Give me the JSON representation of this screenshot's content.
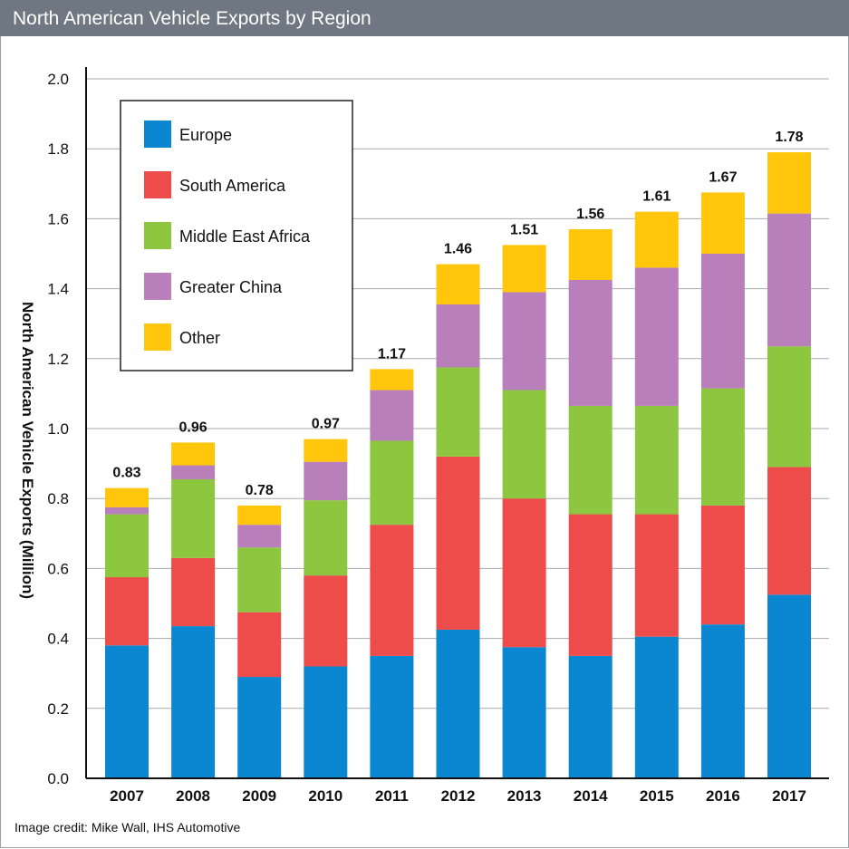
{
  "header": {
    "title": "North American Vehicle Exports by Region"
  },
  "footer": {
    "credit": "Image credit: Mike Wall, IHS Automotive"
  },
  "colors": {
    "Europe": "#0a87d0",
    "South America": "#ee4b4b",
    "Middle East Africa": "#8dc63f",
    "Greater China": "#b97fba",
    "Other": "#ffc60b",
    "grid": "#a7a9ac",
    "title_bar": "#6e7782"
  },
  "chart_data": {
    "type": "bar",
    "stacked": true,
    "title": "North American Vehicle Exports by Region",
    "xlabel": "",
    "ylabel": "North American Vehicle Exports (Million)",
    "ylim": [
      0,
      2.0
    ],
    "yticks": [
      "0.0",
      "0.2",
      "0.4",
      "0.6",
      "0.8",
      "1.0",
      "1.2",
      "1.4",
      "1.6",
      "1.8",
      "2.0"
    ],
    "ytick_values": [
      0,
      0.2,
      0.4,
      0.6,
      0.8,
      1.0,
      1.2,
      1.4,
      1.6,
      1.8,
      2.0
    ],
    "grid": true,
    "legend_position": "top-left",
    "categories": [
      "2007",
      "2008",
      "2009",
      "2010",
      "2011",
      "2012",
      "2013",
      "2014",
      "2015",
      "2016",
      "2017"
    ],
    "series": [
      {
        "name": "Europe",
        "values": [
          0.38,
          0.435,
          0.29,
          0.32,
          0.35,
          0.425,
          0.375,
          0.35,
          0.405,
          0.44,
          0.525
        ]
      },
      {
        "name": "South America",
        "values": [
          0.195,
          0.195,
          0.185,
          0.26,
          0.375,
          0.495,
          0.425,
          0.405,
          0.35,
          0.34,
          0.365
        ]
      },
      {
        "name": "Middle East Africa",
        "values": [
          0.18,
          0.225,
          0.185,
          0.215,
          0.24,
          0.255,
          0.31,
          0.31,
          0.31,
          0.335,
          0.345
        ]
      },
      {
        "name": "Greater China",
        "values": [
          0.02,
          0.04,
          0.065,
          0.11,
          0.145,
          0.18,
          0.28,
          0.36,
          0.395,
          0.385,
          0.38
        ]
      },
      {
        "name": "Other",
        "values": [
          0.055,
          0.065,
          0.055,
          0.065,
          0.06,
          0.115,
          0.135,
          0.145,
          0.16,
          0.175,
          0.175
        ]
      }
    ],
    "totals": [
      "0.83",
      "0.96",
      "0.78",
      "0.97",
      "1.17",
      "1.46",
      "1.51",
      "1.56",
      "1.61",
      "1.67",
      "1.78"
    ],
    "legend": [
      "Europe",
      "South America",
      "Middle East Africa",
      "Greater China",
      "Other"
    ]
  }
}
